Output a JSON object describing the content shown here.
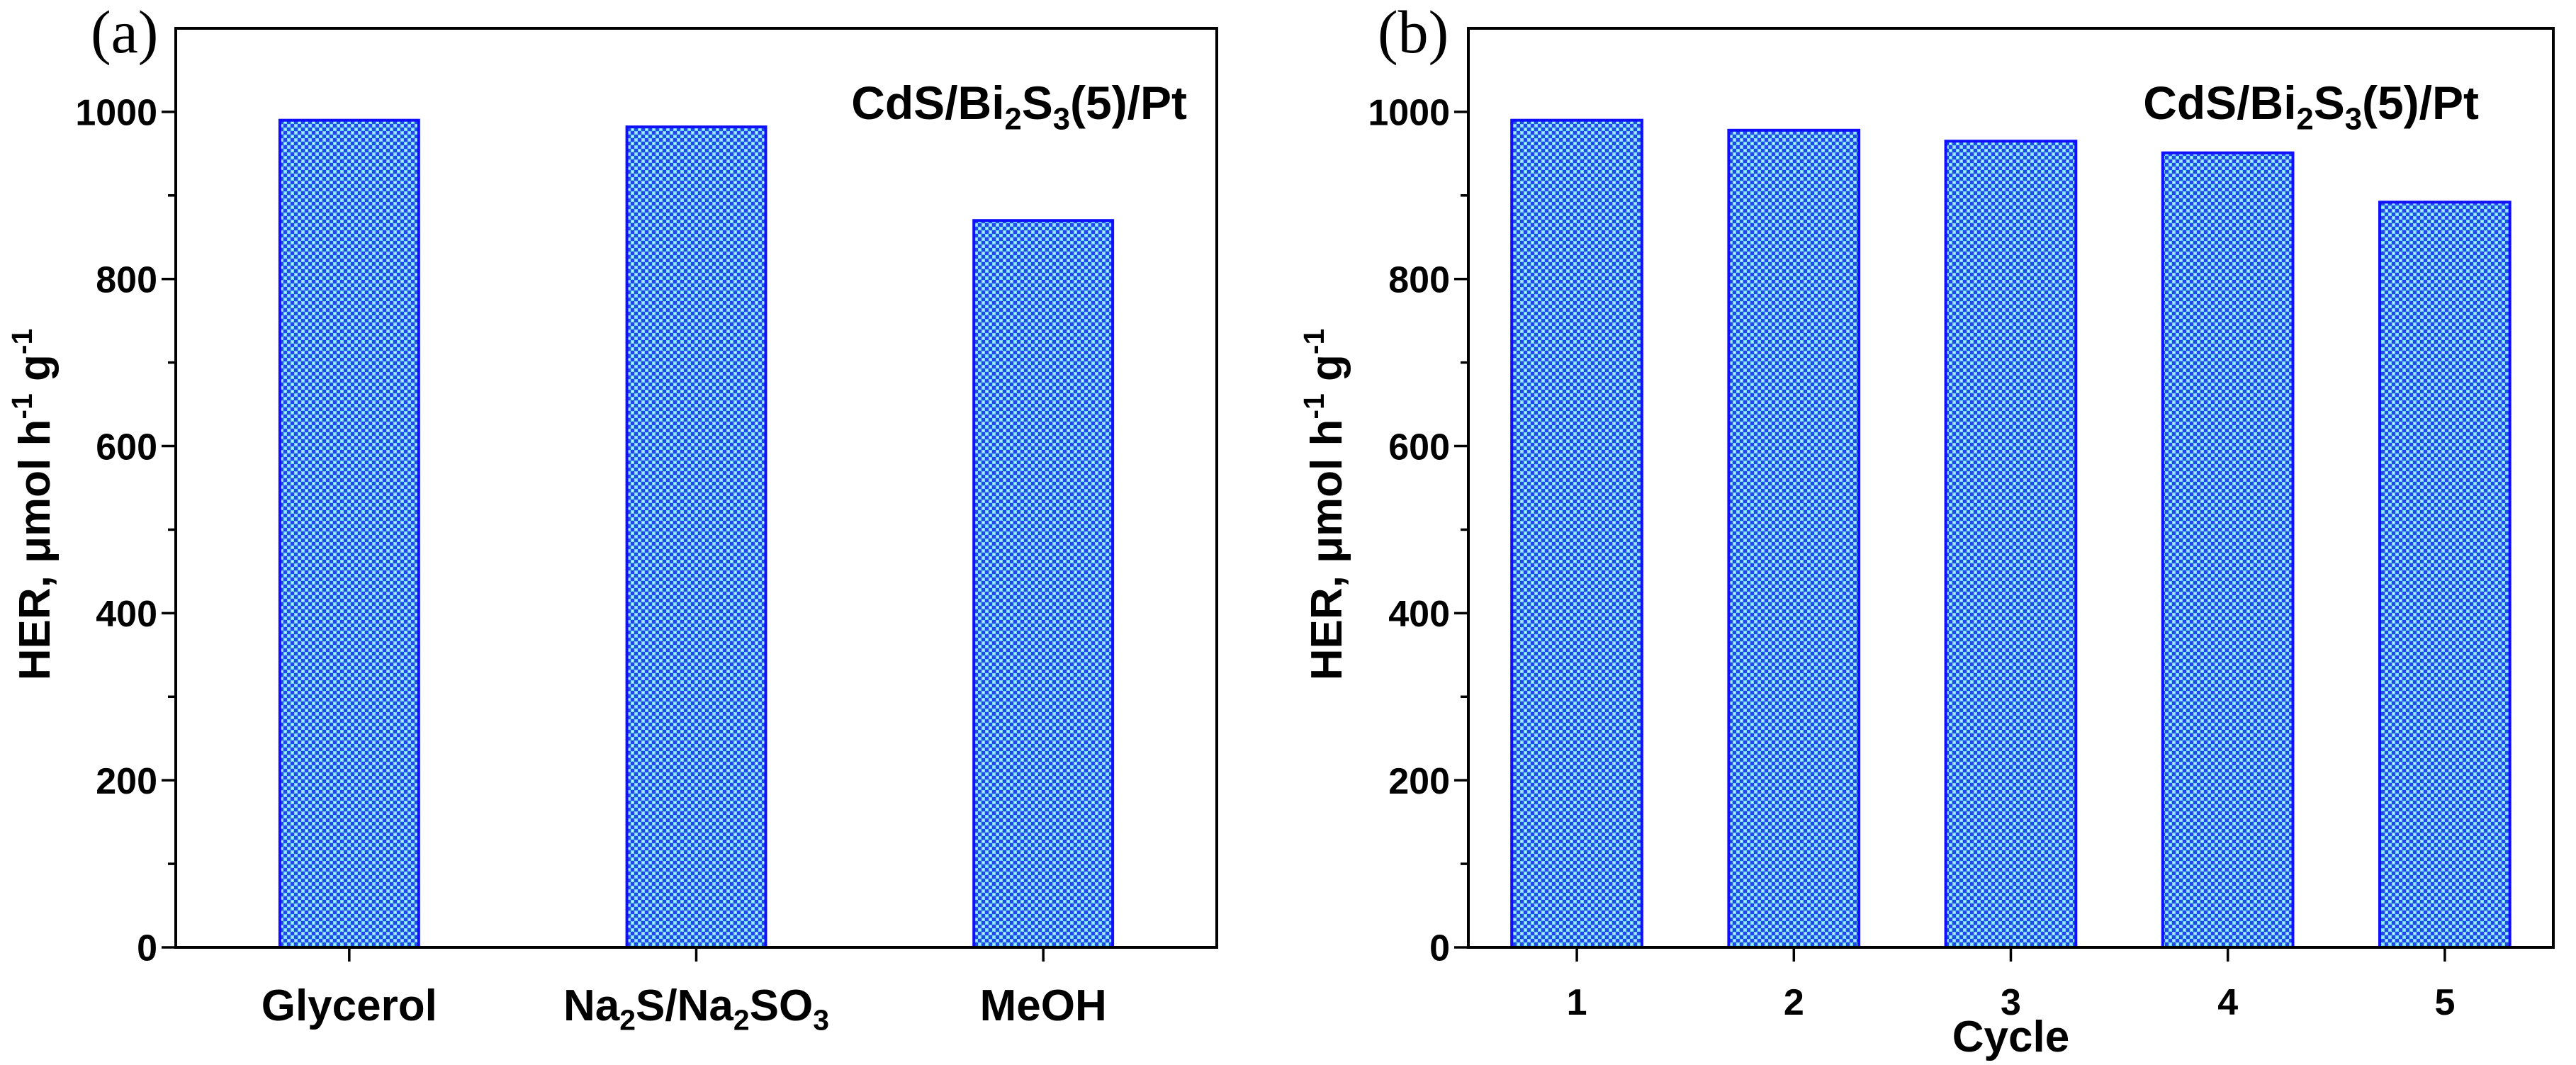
{
  "colors": {
    "background": "#ffffff",
    "axis": "#000000",
    "text": "#000000",
    "bar_fill_dark": "#2447e8",
    "bar_fill_light": "#6fd4ff",
    "bar_fill_highlight": "#e6fbff",
    "bar_stroke": "#1010ff"
  },
  "chart_data": [
    {
      "type": "bar",
      "panel_label": "(a)",
      "annotation": "CdS/Bi2S3(5)/Pt",
      "categories": [
        "Glycerol",
        "Na2S/Na2SO3",
        "MeOH"
      ],
      "values": [
        990,
        982,
        870
      ],
      "ylabel": "HER, μmol h-1 g-1",
      "ylim": [
        0,
        1100
      ],
      "yticks": [
        0,
        200,
        400,
        600,
        800,
        1000
      ],
      "yticks_minor": [
        100,
        300,
        500,
        700,
        900
      ],
      "grid": false
    },
    {
      "type": "bar",
      "panel_label": "(b)",
      "annotation": "CdS/Bi2S3(5)/Pt",
      "x": [
        1,
        2,
        3,
        4,
        5
      ],
      "values": [
        990,
        978,
        965,
        951,
        892
      ],
      "xlabel": "Cycle",
      "ylabel": "HER, μmol h-1 g-1",
      "xlim": [
        0.5,
        5.5
      ],
      "ylim": [
        0,
        1100
      ],
      "yticks": [
        0,
        200,
        400,
        600,
        800,
        1000
      ],
      "yticks_minor": [
        100,
        300,
        500,
        700,
        900
      ],
      "grid": false
    }
  ]
}
